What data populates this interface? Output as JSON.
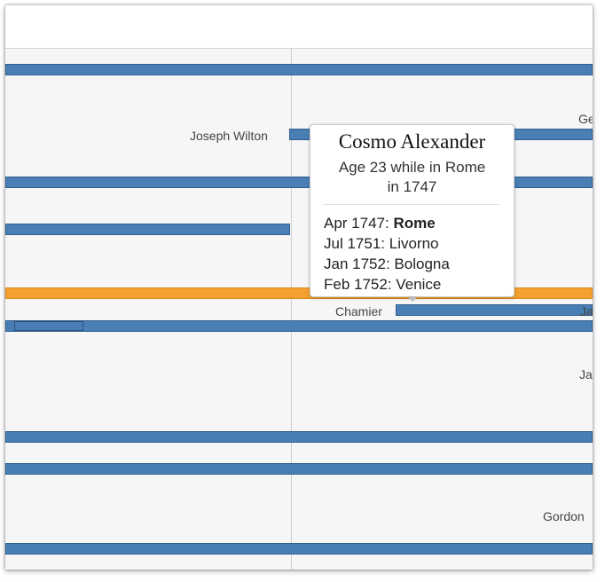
{
  "timeline": {
    "names": {
      "joseph_wilton": "Joseph Wilton",
      "chamier": "Chamier",
      "gordon": "Gordon",
      "ge_partial": "Ge",
      "ja_partial_1": "Ja",
      "ja_partial_2": "Ja"
    },
    "colors": {
      "bar": "#4a7fb5",
      "highlight": "#f3a02e",
      "grid": "#cfcfcf"
    }
  },
  "tooltip": {
    "name": "Cosmo Alexander",
    "age_line1": "Age 23 while in Rome",
    "age_line2": "in 1747",
    "stops": [
      {
        "date": "Apr 1747:",
        "place": "Rome",
        "current": true
      },
      {
        "date": "Jul 1751:",
        "place": "Livorno",
        "current": false
      },
      {
        "date": "Jan 1752:",
        "place": "Bologna",
        "current": false
      },
      {
        "date": "Feb 1752:",
        "place": "Venice",
        "current": false
      }
    ]
  }
}
